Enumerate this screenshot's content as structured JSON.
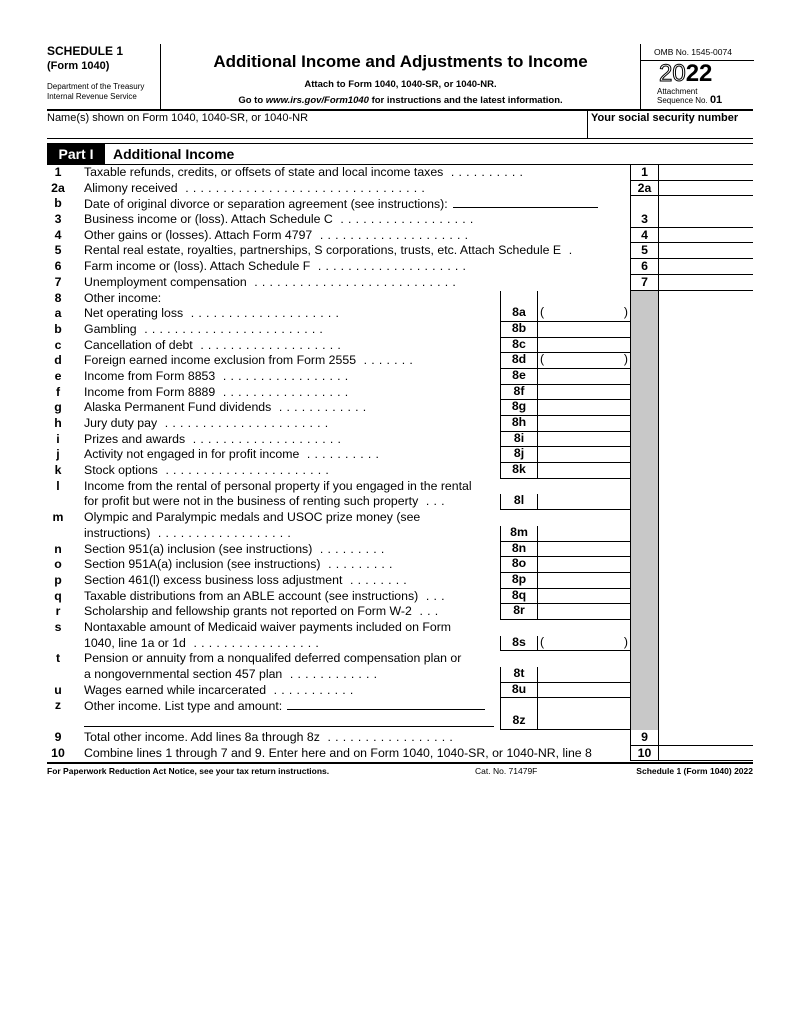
{
  "header": {
    "schedule": "SCHEDULE 1",
    "form": "(Form 1040)",
    "dept1": "Department of the Treasury",
    "dept2": "Internal Revenue Service",
    "title": "Additional Income and Adjustments to Income",
    "attach": "Attach to Form 1040, 1040-SR, or 1040-NR.",
    "goto_pre": "Go to ",
    "goto_url": "www.irs.gov/Form1040",
    "goto_post": " for instructions and the latest information.",
    "omb": "OMB No. 1545-0074",
    "year_outline": "20",
    "year_bold": "22",
    "attachment": "Attachment",
    "sequence": "Sequence No.",
    "sequence_no": "01"
  },
  "name_row": {
    "name_label": "Name(s) shown on Form 1040, 1040-SR, or 1040-NR",
    "ssn_label": "Your social security number"
  },
  "part": {
    "tag": "Part I",
    "title": "Additional Income"
  },
  "lines": [
    {
      "num": "1",
      "text": "Taxable refunds, credits, or offsets of state and local income taxes",
      "dots": 10,
      "outer": "1"
    },
    {
      "num": "2a",
      "text": "Alimony received",
      "dots": 32,
      "outer": "2a"
    },
    {
      "num": "b",
      "text": "Date of original divorce or separation agreement (see instructions):",
      "field": 145,
      "outer": ""
    },
    {
      "num": "3",
      "text": "Business income or (loss). Attach Schedule C",
      "dots": 18,
      "outer": "3"
    },
    {
      "num": "4",
      "text": "Other gains or (losses). Attach Form 4797",
      "dots": 20,
      "outer": "4"
    },
    {
      "num": "5",
      "text": "Rental real estate, royalties, partnerships, S corporations, trusts, etc. Attach Schedule E",
      "dots": 1,
      "outer": "5"
    },
    {
      "num": "6",
      "text": "Farm income or (loss). Attach Schedule F",
      "dots": 20,
      "outer": "6"
    },
    {
      "num": "7",
      "text": "Unemployment compensation",
      "dots": 27,
      "outer": "7"
    },
    {
      "num": "8",
      "text": "Other income:",
      "gray": true,
      "top8": true
    },
    {
      "num": "a",
      "text": "Net operating loss",
      "dots": 20,
      "inner": "8a",
      "paren": true,
      "gray": true
    },
    {
      "num": "b",
      "text": "Gambling",
      "dots": 24,
      "inner": "8b",
      "gray": true
    },
    {
      "num": "c",
      "text": "Cancellation of debt",
      "dots": 19,
      "inner": "8c",
      "gray": true
    },
    {
      "num": "d",
      "text": "Foreign earned income exclusion from Form 2555",
      "dots": 7,
      "inner": "8d",
      "paren": true,
      "gray": true
    },
    {
      "num": "e",
      "text": "Income from Form 8853",
      "dots": 17,
      "inner": "8e",
      "gray": true
    },
    {
      "num": "f",
      "text": "Income from Form 8889",
      "dots": 17,
      "inner": "8f",
      "gray": true
    },
    {
      "num": "g",
      "text": "Alaska Permanent Fund dividends",
      "dots": 12,
      "inner": "8g",
      "gray": true
    },
    {
      "num": "h",
      "text": "Jury duty pay",
      "dots": 22,
      "inner": "8h",
      "gray": true
    },
    {
      "num": "i",
      "text": "Prizes and awards",
      "dots": 20,
      "inner": "8i",
      "gray": true
    },
    {
      "num": "j",
      "text": "Activity not engaged in for profit income",
      "dots": 10,
      "inner": "8j",
      "gray": true
    },
    {
      "num": "k",
      "text": "Stock options",
      "dots": 22,
      "inner": "8k",
      "gray": true
    },
    {
      "num": "l",
      "text": "Income from the rental of personal property if you engaged in the rental",
      "text2": "for profit but were not in the business of renting such property",
      "dots": 3,
      "inner": "8l",
      "gray": true
    },
    {
      "num": "m",
      "text": "Olympic and Paralympic medals and USOC prize money (see",
      "text2": "instructions)",
      "dots": 18,
      "inner": "8m",
      "gray": true
    },
    {
      "num": "n",
      "text": "Section 951(a) inclusion (see instructions)",
      "dots": 9,
      "inner": "8n",
      "gray": true
    },
    {
      "num": "o",
      "text": "Section 951A(a) inclusion (see instructions)",
      "dots": 9,
      "inner": "8o",
      "gray": true
    },
    {
      "num": "p",
      "text": "Section 461(l) excess business loss adjustment",
      "dots": 8,
      "inner": "8p",
      "gray": true
    },
    {
      "num": "q",
      "text": "Taxable distributions from an ABLE account (see instructions)",
      "dots": 3,
      "inner": "8q",
      "gray": true
    },
    {
      "num": "r",
      "text": "Scholarship and fellowship grants not reported on Form W-2",
      "dots": 3,
      "inner": "8r",
      "gray": true
    },
    {
      "num": "s",
      "text": "Nontaxable amount of Medicaid waiver payments included on Form",
      "text2": "1040, line 1a or 1d",
      "dots": 17,
      "inner": "8s",
      "paren": true,
      "gray": true
    },
    {
      "num": "t",
      "text": "Pension or annuity from a nonqualifed deferred compensation plan or",
      "text2": "a nongovernmental section 457 plan",
      "dots": 12,
      "inner": "8t",
      "gray": true
    },
    {
      "num": "u",
      "text": "Wages earned while incarcerated",
      "dots": 11,
      "inner": "8u",
      "gray": true
    },
    {
      "num": "z",
      "text": "Other income. List type and amount:",
      "field": 198,
      "field2": 414,
      "inner": "8z",
      "full": true,
      "gray": true
    },
    {
      "num": "9",
      "text": "Total other income. Add lines 8a through 8z",
      "dots": 17,
      "outer": "9",
      "wide": true
    },
    {
      "num": "10",
      "text": "Combine lines 1 through 7 and 9. Enter here and on Form 1040, 1040-SR, or 1040-NR, line 8",
      "outer": "10",
      "wide": true
    }
  ],
  "footer": {
    "paperwork": "For Paperwork Reduction Act Notice, see your tax return instructions.",
    "cat": "Cat. No. 71479F",
    "form_id": "Schedule 1 (Form 1040) 2022"
  }
}
